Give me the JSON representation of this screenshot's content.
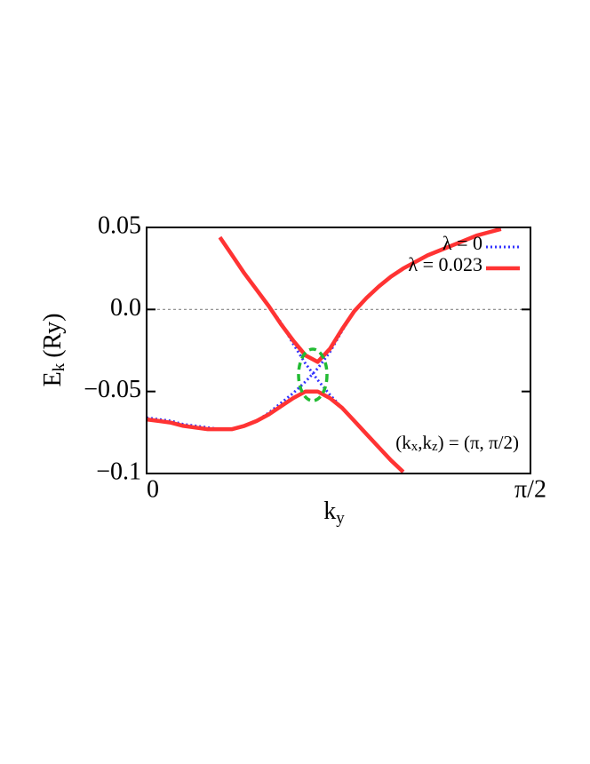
{
  "chart_data": {
    "type": "line",
    "xlabel": {
      "main": "k",
      "sub": "y"
    },
    "ylabel": {
      "main": "E",
      "sub": "k",
      "unit": "(Ry)"
    },
    "annotation": [
      "(k",
      "x",
      ",k",
      "z",
      ") = (π, π/2)"
    ],
    "xlim": [
      0,
      1.5708
    ],
    "xticks": [
      0,
      {
        "value": 1.5708,
        "label": "π/2"
      }
    ],
    "ylim": [
      -0.1,
      0.05
    ],
    "yticks": [
      {
        "value": -0.1,
        "label": "−0.1"
      },
      {
        "value": -0.05,
        "label": "−0.05"
      },
      {
        "value": 0,
        "label": "0.0"
      },
      0.05
    ],
    "zero_line": true,
    "legend": "upper right",
    "x": [
      0,
      0.05,
      0.1,
      0.15,
      0.2,
      0.25,
      0.3,
      0.35,
      0.4,
      0.45,
      0.5,
      0.55,
      0.6,
      0.65,
      0.7,
      0.75,
      0.8,
      0.85,
      0.9,
      0.95,
      1.0,
      1.05,
      1.1,
      1.15,
      1.2,
      1.25,
      1.3,
      1.35,
      1.4,
      1.45,
      1.5
    ],
    "series": [
      {
        "name": "λ = 0",
        "color": "#3333ff",
        "dash": "dotted",
        "width": 3,
        "bands": [
          [
            null,
            null,
            null,
            null,
            null,
            null,
            0.044,
            0.033,
            0.022,
            0.012,
            0.002,
            -0.008,
            -0.021,
            -0.033,
            -0.043,
            -0.052,
            -0.06,
            -0.068,
            -0.076,
            -0.084,
            -0.092,
            -0.099,
            null,
            null,
            null,
            null,
            null,
            null,
            null,
            null,
            null
          ],
          [
            -0.066,
            -0.067,
            -0.068,
            -0.07,
            -0.071,
            -0.072,
            -0.073,
            -0.073,
            -0.071,
            -0.068,
            -0.063,
            -0.057,
            -0.051,
            -0.044,
            -0.036,
            -0.026,
            -0.013,
            -0.001,
            0.007,
            0.014,
            0.02,
            0.025,
            0.029,
            0.033,
            0.036,
            0.039,
            0.042,
            0.045,
            0.047,
            0.049,
            null
          ]
        ]
      },
      {
        "name": "λ = 0.023",
        "color": "#ff3333",
        "dash": "solid",
        "width": 4.5,
        "bands": [
          [
            null,
            null,
            null,
            null,
            null,
            null,
            0.044,
            0.033,
            0.022,
            0.012,
            0.002,
            -0.009,
            -0.019,
            -0.028,
            -0.032,
            -0.024,
            -0.012,
            -0.001,
            0.007,
            0.014,
            0.02,
            0.025,
            0.029,
            0.033,
            0.036,
            0.039,
            0.042,
            0.045,
            0.047,
            0.049,
            null
          ],
          [
            -0.067,
            -0.068,
            -0.069,
            -0.071,
            -0.072,
            -0.073,
            -0.073,
            -0.073,
            -0.071,
            -0.068,
            -0.064,
            -0.059,
            -0.054,
            -0.05,
            -0.05,
            -0.054,
            -0.06,
            -0.068,
            -0.076,
            -0.084,
            -0.092,
            -0.099,
            null,
            null,
            null,
            null,
            null,
            null,
            null,
            null,
            null
          ]
        ]
      }
    ]
  }
}
